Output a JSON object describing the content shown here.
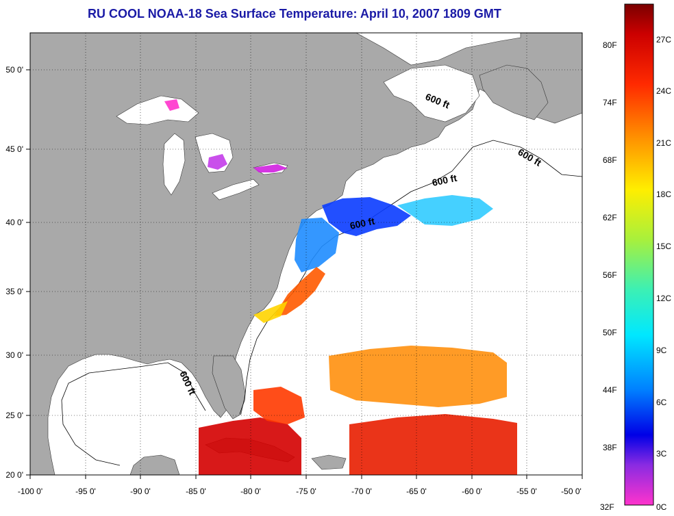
{
  "title": "RU COOL  NOAA-18  Sea Surface Temperature:  April 10, 2007 1809 GMT",
  "colors": {
    "land": "#a9a9a9",
    "ocean": "#ffffff",
    "title_text": "#1a1aa6",
    "gridline": "#000000"
  },
  "map": {
    "lon_range": [
      -100,
      -50
    ],
    "lat_range": [
      20,
      52.5
    ],
    "lon_ticks": [
      "-100 0'",
      "-95 0'",
      "-90 0'",
      "-85 0'",
      "-80 0'",
      "-75 0'",
      "-70 0'",
      "-65 0'",
      "-60 0'",
      "-55 0'",
      "-50 0'"
    ],
    "lat_ticks": [
      "20 0'",
      "25 0'",
      "30 0'",
      "35 0'",
      "40 0'",
      "45 0'",
      "50 0'"
    ],
    "grid": "dotted",
    "contour_label": "600 ft"
  },
  "colorbar": {
    "fahrenheit_labels": [
      "80F",
      "74F",
      "68F",
      "62F",
      "56F",
      "50F",
      "44F",
      "38F",
      "32F"
    ],
    "celsius_labels": [
      "27C",
      "24C",
      "21C",
      "18C",
      "15C",
      "12C",
      "9C",
      "6C",
      "3C",
      "0C"
    ],
    "range_c": [
      0,
      29
    ]
  }
}
